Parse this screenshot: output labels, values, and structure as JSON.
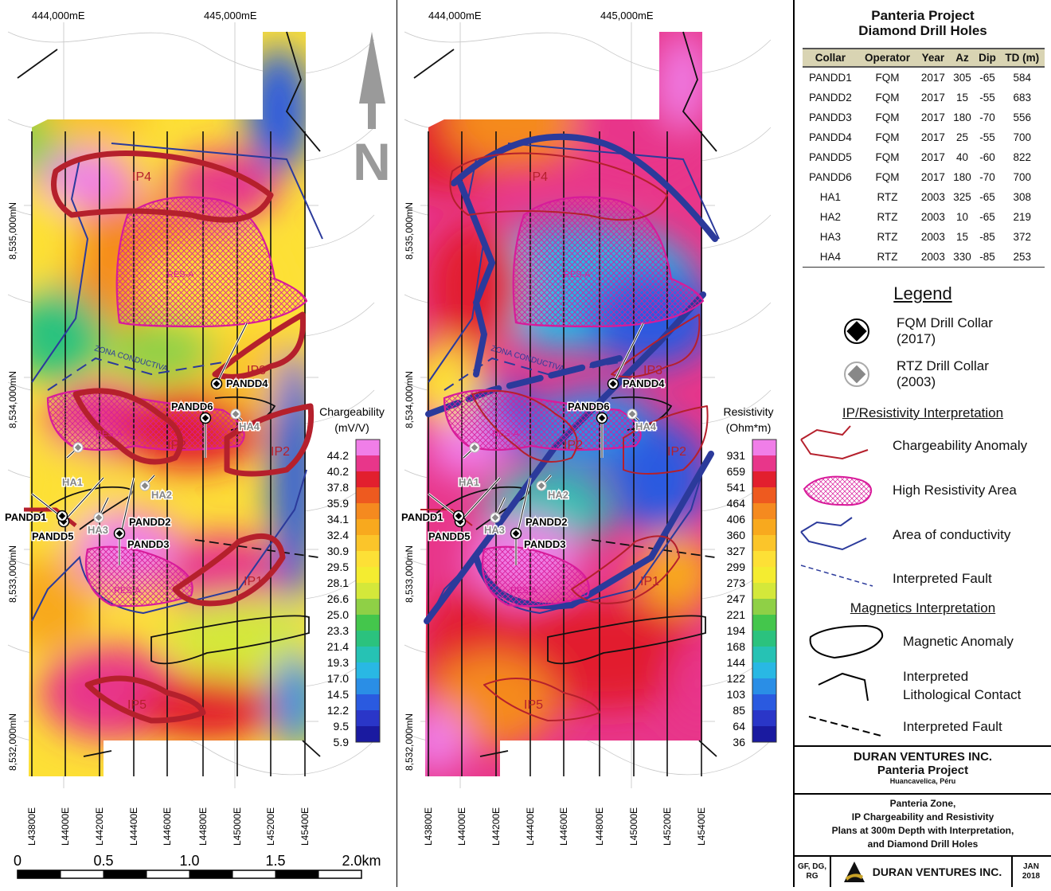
{
  "maps": [
    {
      "id": "chargeability",
      "offset_x": 0,
      "scale_title": "Chargeability",
      "scale_unit": "(mV/V)",
      "scale_values": [
        "44.2",
        "40.2",
        "37.8",
        "35.9",
        "34.1",
        "32.4",
        "30.9",
        "29.5",
        "28.1",
        "26.6",
        "25.0",
        "23.3",
        "21.4",
        "19.3",
        "17.0",
        "14.5",
        "12.2",
        "9.5",
        "5.9"
      ]
    },
    {
      "id": "resistivity",
      "offset_x": 498,
      "scale_title": "Resistivity",
      "scale_unit": "(Ohm*m)",
      "scale_values": [
        "931",
        "659",
        "541",
        "464",
        "406",
        "360",
        "327",
        "299",
        "273",
        "247",
        "221",
        "194",
        "168",
        "144",
        "122",
        "103",
        "85",
        "64",
        "36"
      ]
    }
  ],
  "scale_colors": [
    "#f07ee8",
    "#e8368a",
    "#e21f2e",
    "#ee5a1f",
    "#f58a1f",
    "#f8a91e",
    "#fbc52a",
    "#fde036",
    "#f4ec30",
    "#d4e83a",
    "#8fd046",
    "#44c64c",
    "#2bc27e",
    "#26c2b4",
    "#29b8e4",
    "#2a8ee6",
    "#2a5ae0",
    "#2a36c8",
    "#1a1aa0"
  ],
  "grid": {
    "easting_labels": [
      "444,000mE",
      "445,000mE"
    ],
    "northing_labels": [
      "8,535,000mN",
      "8,534,000mN",
      "8,533,000mN",
      "8,532,000mN"
    ],
    "lines": [
      "L43800E",
      "L44000E",
      "L44200E",
      "L44400E",
      "L44600E",
      "L44800E",
      "L45000E",
      "L45200E",
      "L45400E"
    ]
  },
  "labels": {
    "zones": [
      "IP4",
      "IP3",
      "IP2",
      "IP2",
      "IP1",
      "IP5"
    ],
    "resa": "RES-A",
    "conductive": "ZONA CONDUCTIVA",
    "holes": [
      "PANDD1",
      "PANDD2",
      "PANDD3",
      "PANDD4",
      "PANDD5",
      "PANDD6",
      "HA1",
      "HA2",
      "HA3",
      "HA4"
    ]
  },
  "scalebar": [
    "0",
    "0.5",
    "1.0",
    "1.5",
    "2.0km"
  ],
  "north_letter": "N",
  "table": {
    "title_line1": "Panteria Project",
    "title_line2": "Diamond Drill Holes",
    "headers": [
      "Collar",
      "Operator",
      "Year",
      "Az",
      "Dip",
      "TD (m)"
    ],
    "rows": [
      [
        "PANDD1",
        "FQM",
        "2017",
        "305",
        "-65",
        "584"
      ],
      [
        "PANDD2",
        "FQM",
        "2017",
        "15",
        "-55",
        "683"
      ],
      [
        "PANDD3",
        "FQM",
        "2017",
        "180",
        "-70",
        "556"
      ],
      [
        "PANDD4",
        "FQM",
        "2017",
        "25",
        "-55",
        "700"
      ],
      [
        "PANDD5",
        "FQM",
        "2017",
        "40",
        "-60",
        "822"
      ],
      [
        "PANDD6",
        "FQM",
        "2017",
        "180",
        "-70",
        "700"
      ],
      [
        "HA1",
        "RTZ",
        "2003",
        "325",
        "-65",
        "308"
      ],
      [
        "HA2",
        "RTZ",
        "2003",
        "10",
        "-65",
        "219"
      ],
      [
        "HA3",
        "RTZ",
        "2003",
        "15",
        "-85",
        "372"
      ],
      [
        "HA4",
        "RTZ",
        "2003",
        "330",
        "-85",
        "253"
      ]
    ]
  },
  "legend": {
    "title": "Legend",
    "fqm_line1": "FQM Drill Collar",
    "fqm_line2": "(2017)",
    "rtz_line1": "RTZ Drill Collar",
    "rtz_line2": "(2003)",
    "ip_title": "IP/Resistivity Interpretation",
    "charg_anomaly": "Chargeability Anomaly",
    "high_res": "High Resistivity Area",
    "conductivity": "Area of conductivity",
    "fault1": "Interpreted Fault",
    "mag_title": "Magnetics Interpretation",
    "mag_anomaly": "Magnetic Anomaly",
    "litho_line1": "Interpreted",
    "litho_line2": "Lithological Contact",
    "fault2": "Interpreted Fault"
  },
  "titleblock": {
    "company": "DURAN VENTURES INC.",
    "project": "Panteria Project",
    "location": "Huancavelica, Péru",
    "desc_line1": "Panteria Zone,",
    "desc_line2": "IP Chargeability and Resistivity",
    "desc_line3": "Plans at 300m Depth with Interpretation,",
    "desc_line4": "and Diamond Drill Holes",
    "authors_line1": "GF, DG,",
    "authors_line2": "RG",
    "logo_text": "DURAN VENTURES INC.",
    "date_line1": "JAN",
    "date_line2": "2018"
  },
  "colors": {
    "ip_anomaly": "#b5202c",
    "resa": "#d81b9a",
    "conductive": "#2b3a9b",
    "table_header": "#d9d4b3"
  }
}
